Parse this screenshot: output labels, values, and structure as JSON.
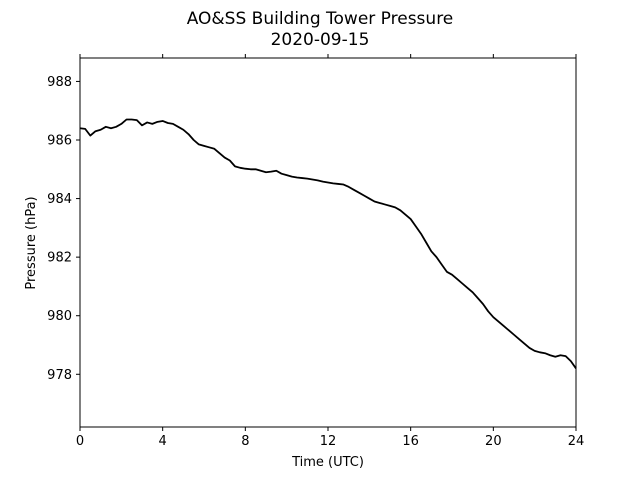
{
  "chart_data": {
    "type": "line",
    "title": "AO&SS Building Tower Pressure",
    "subtitle": "2020-09-15",
    "xlabel": "Time (UTC)",
    "ylabel": "Pressure (hPa)",
    "xlim": [
      0,
      24
    ],
    "ylim": [
      976.2,
      988.8
    ],
    "xticks": [
      0,
      4,
      8,
      12,
      16,
      20,
      24
    ],
    "yticks": [
      978,
      980,
      982,
      984,
      986,
      988
    ],
    "grid": false,
    "legend": "none",
    "series": [
      {
        "color": "#000000",
        "x": [
          0.0,
          0.25,
          0.5,
          0.75,
          1.0,
          1.25,
          1.5,
          1.75,
          2.0,
          2.25,
          2.5,
          2.75,
          3.0,
          3.25,
          3.5,
          3.75,
          4.0,
          4.25,
          4.5,
          4.75,
          5.0,
          5.25,
          5.5,
          5.75,
          6.0,
          6.25,
          6.5,
          6.75,
          7.0,
          7.25,
          7.5,
          7.75,
          8.0,
          8.25,
          8.5,
          8.75,
          9.0,
          9.25,
          9.5,
          9.75,
          10.0,
          10.25,
          10.5,
          10.75,
          11.0,
          11.25,
          11.5,
          11.75,
          12.0,
          12.25,
          12.5,
          12.75,
          13.0,
          13.25,
          13.5,
          13.75,
          14.0,
          14.25,
          14.5,
          14.75,
          15.0,
          15.25,
          15.5,
          15.75,
          16.0,
          16.25,
          16.5,
          16.75,
          17.0,
          17.25,
          17.5,
          17.75,
          18.0,
          18.25,
          18.5,
          18.75,
          19.0,
          19.25,
          19.5,
          19.75,
          20.0,
          20.25,
          20.5,
          20.75,
          21.0,
          21.25,
          21.5,
          21.75,
          22.0,
          22.25,
          22.5,
          22.75,
          23.0,
          23.25,
          23.5,
          23.75,
          24.0
        ],
        "y": [
          986.4,
          986.38,
          986.15,
          986.3,
          986.35,
          986.45,
          986.4,
          986.45,
          986.55,
          986.7,
          986.7,
          986.68,
          986.5,
          986.6,
          986.55,
          986.62,
          986.65,
          986.58,
          986.55,
          986.45,
          986.35,
          986.2,
          986.0,
          985.85,
          985.8,
          985.75,
          985.7,
          985.55,
          985.4,
          985.3,
          985.1,
          985.05,
          985.02,
          985.0,
          985.0,
          984.95,
          984.9,
          984.92,
          984.95,
          984.85,
          984.8,
          984.75,
          984.72,
          984.7,
          984.68,
          984.65,
          984.62,
          984.58,
          984.55,
          984.52,
          984.5,
          984.48,
          984.4,
          984.3,
          984.2,
          984.1,
          984.0,
          983.9,
          983.85,
          983.8,
          983.75,
          983.7,
          983.6,
          983.45,
          983.3,
          983.05,
          982.8,
          982.5,
          982.2,
          982.0,
          981.75,
          981.5,
          981.4,
          981.25,
          981.1,
          980.95,
          980.8,
          980.6,
          980.4,
          980.15,
          979.95,
          979.8,
          979.65,
          979.5,
          979.35,
          979.2,
          979.05,
          978.9,
          978.8,
          978.75,
          978.72,
          978.65,
          978.6,
          978.65,
          978.62,
          978.45,
          978.2
        ]
      }
    ]
  }
}
